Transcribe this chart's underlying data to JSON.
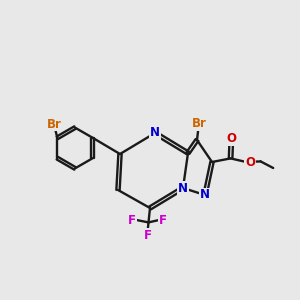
{
  "bg_color": "#e8e8e8",
  "bond_color": "#1a1a1a",
  "bond_lw": 1.7,
  "dbl_off": 0.055,
  "colors": {
    "Br": "#cc6600",
    "N": "#0000cc",
    "O": "#cc0000",
    "F": "#cc00cc",
    "C": "#1a1a1a"
  },
  "fs": 8.5,
  "fs_small": 7.5
}
